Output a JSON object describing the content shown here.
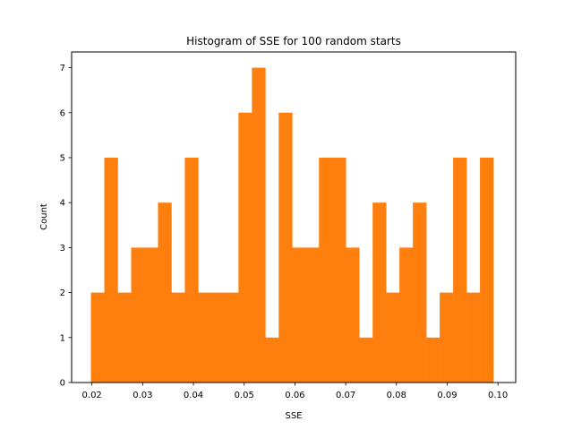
{
  "chart_data": {
    "type": "bar",
    "title": "Histogram of SSE for 100 random starts",
    "xlabel": "SSE",
    "ylabel": "Count",
    "bar_color": "#ff7f0e",
    "xlim": [
      0.016,
      0.1035
    ],
    "ylim": [
      0,
      7.35
    ],
    "xticks": [
      0.02,
      0.03,
      0.04,
      0.05,
      0.06,
      0.07,
      0.08,
      0.09,
      0.1
    ],
    "xtick_labels": [
      "0.02",
      "0.03",
      "0.04",
      "0.05",
      "0.06",
      "0.07",
      "0.08",
      "0.09",
      "0.10"
    ],
    "yticks": [
      0,
      1,
      2,
      3,
      4,
      5,
      6,
      7
    ],
    "ytick_labels": [
      "0",
      "1",
      "2",
      "3",
      "4",
      "5",
      "6",
      "7"
    ],
    "grid": false,
    "bin_start": 0.0198,
    "bin_width": 0.0026433,
    "values": [
      2,
      5,
      2,
      3,
      3,
      4,
      2,
      5,
      2,
      2,
      2,
      6,
      7,
      1,
      6,
      3,
      3,
      5,
      5,
      3,
      1,
      4,
      2,
      3,
      4,
      1,
      2,
      5,
      2,
      5
    ]
  }
}
